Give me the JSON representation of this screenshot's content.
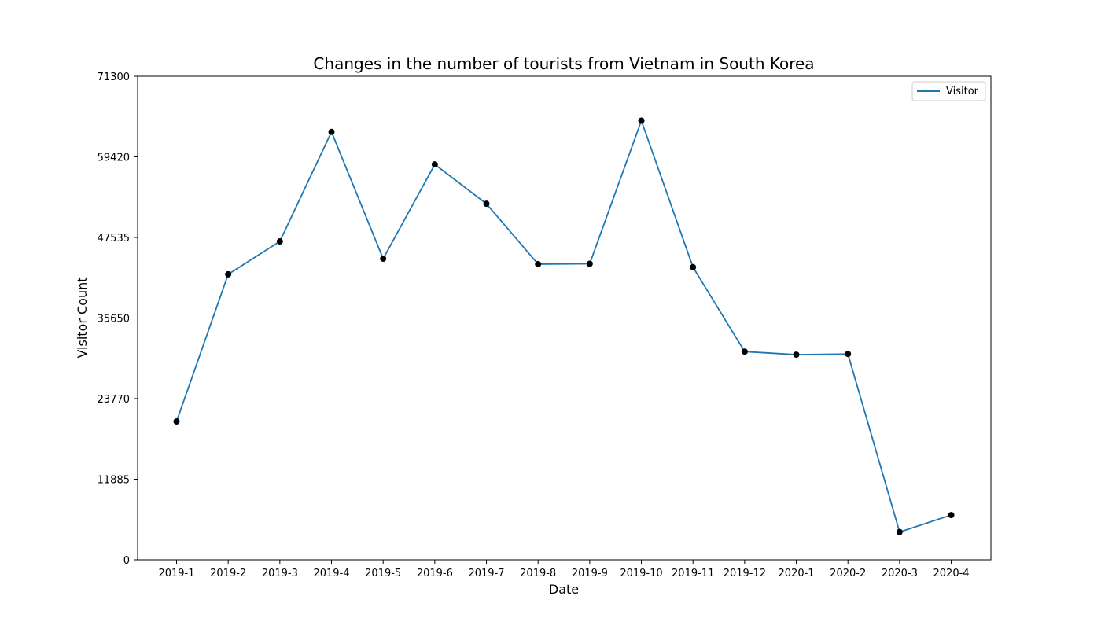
{
  "chart_data": {
    "type": "line",
    "title": "Changes in the number of tourists from Vietnam in South Korea",
    "xlabel": "Date",
    "ylabel": "Visitor Count",
    "categories": [
      "2019-1",
      "2019-2",
      "2019-3",
      "2019-4",
      "2019-5",
      "2019-6",
      "2019-7",
      "2019-8",
      "2019-9",
      "2019-10",
      "2019-11",
      "2019-12",
      "2020-1",
      "2020-2",
      "2020-3",
      "2020-4"
    ],
    "series": [
      {
        "name": "Visitor",
        "values": [
          20400,
          42100,
          46950,
          63100,
          44400,
          58300,
          52500,
          43600,
          43650,
          64750,
          43150,
          30700,
          30250,
          30350,
          4100,
          6600
        ]
      }
    ],
    "ylim": [
      0,
      71300
    ],
    "yticks": [
      "0",
      "11885",
      "23770",
      "35650",
      "47535",
      "59420",
      "71300"
    ],
    "ytick_values": [
      0,
      11885,
      23770,
      35650,
      47535,
      59420,
      71300
    ],
    "grid": false,
    "legend_position": "top-right",
    "colors": {
      "line": "#1f77b4",
      "markers": "#000000"
    }
  }
}
